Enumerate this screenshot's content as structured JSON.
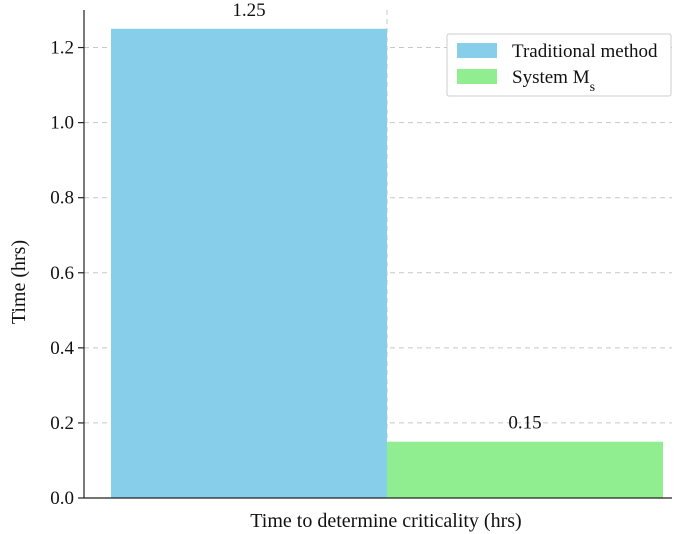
{
  "chart_data": {
    "type": "bar",
    "categories": [
      "Time to determine criticality (hrs)"
    ],
    "series": [
      {
        "name": "Traditional method",
        "values": [
          1.25
        ],
        "color": "#87ceeb",
        "data_label": "1.25"
      },
      {
        "name": "System M",
        "name_subscript": "s",
        "values": [
          0.15
        ],
        "color": "#90ee90",
        "data_label": "0.15"
      }
    ],
    "title": "",
    "xlabel": "Time to determine criticality (hrs)",
    "ylabel": "Time (hrs)",
    "ylim": [
      0,
      1.3
    ],
    "yticks": [
      0.0,
      0.2,
      0.4,
      0.6,
      0.8,
      1.0,
      1.2
    ],
    "ytick_labels": [
      "0.0",
      "0.2",
      "0.4",
      "0.6",
      "0.8",
      "1.0",
      "1.2"
    ],
    "grid": true,
    "legend_position": "top-right"
  }
}
